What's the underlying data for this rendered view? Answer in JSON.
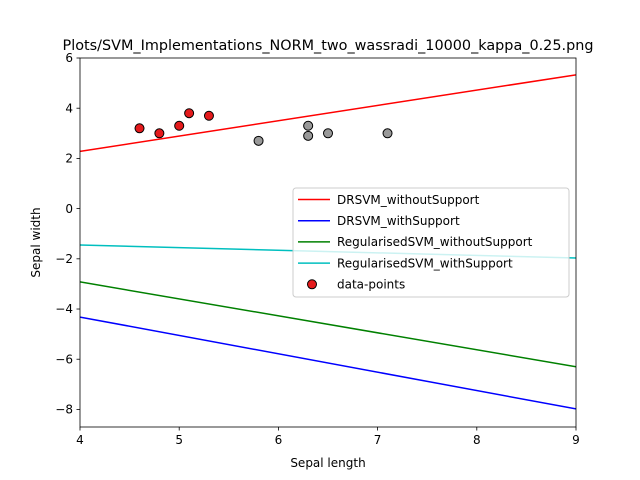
{
  "chart_data": {
    "type": "line",
    "title": "Plots/SVM_Implementations_NORM_two_wassradi_10000_kappa_0.25.png",
    "xlabel": "Sepal length",
    "ylabel": "Sepal width",
    "xlim": [
      4,
      9
    ],
    "ylim": [
      -8.7,
      6
    ],
    "xticks": [
      4,
      5,
      6,
      7,
      8,
      9
    ],
    "yticks": [
      -8,
      -6,
      -4,
      -2,
      0,
      2,
      4,
      6
    ],
    "grid": false,
    "legend_position": "center-right",
    "series": [
      {
        "name": "DRSVM_withoutSupport",
        "kind": "line",
        "color": "#ff0000",
        "x": [
          4,
          9
        ],
        "y": [
          2.28,
          5.33
        ]
      },
      {
        "name": "DRSVM_withSupport",
        "kind": "line",
        "color": "#0000ff",
        "x": [
          4,
          9
        ],
        "y": [
          -4.32,
          -7.98
        ]
      },
      {
        "name": "RegularisedSVM_withoutSupport",
        "kind": "line",
        "color": "#008000",
        "x": [
          4,
          9
        ],
        "y": [
          -2.92,
          -6.3
        ]
      },
      {
        "name": "RegularisedSVM_withSupport",
        "kind": "line",
        "color": "#00bfbf",
        "x": [
          4,
          9
        ],
        "y": [
          -1.45,
          -1.97
        ]
      },
      {
        "name": "data-points",
        "kind": "scatter",
        "color": "#e41a1c",
        "points": [
          {
            "x": 4.6,
            "y": 3.2,
            "color": "#e41a1c"
          },
          {
            "x": 4.8,
            "y": 3.0,
            "color": "#e41a1c"
          },
          {
            "x": 5.0,
            "y": 3.3,
            "color": "#e41a1c"
          },
          {
            "x": 5.1,
            "y": 3.8,
            "color": "#e41a1c"
          },
          {
            "x": 5.3,
            "y": 3.7,
            "color": "#e41a1c"
          },
          {
            "x": 5.8,
            "y": 2.7,
            "color": "#999999"
          },
          {
            "x": 6.3,
            "y": 3.3,
            "color": "#999999"
          },
          {
            "x": 6.3,
            "y": 2.9,
            "color": "#999999"
          },
          {
            "x": 6.5,
            "y": 3.0,
            "color": "#999999"
          },
          {
            "x": 7.1,
            "y": 3.0,
            "color": "#999999"
          }
        ]
      }
    ]
  }
}
